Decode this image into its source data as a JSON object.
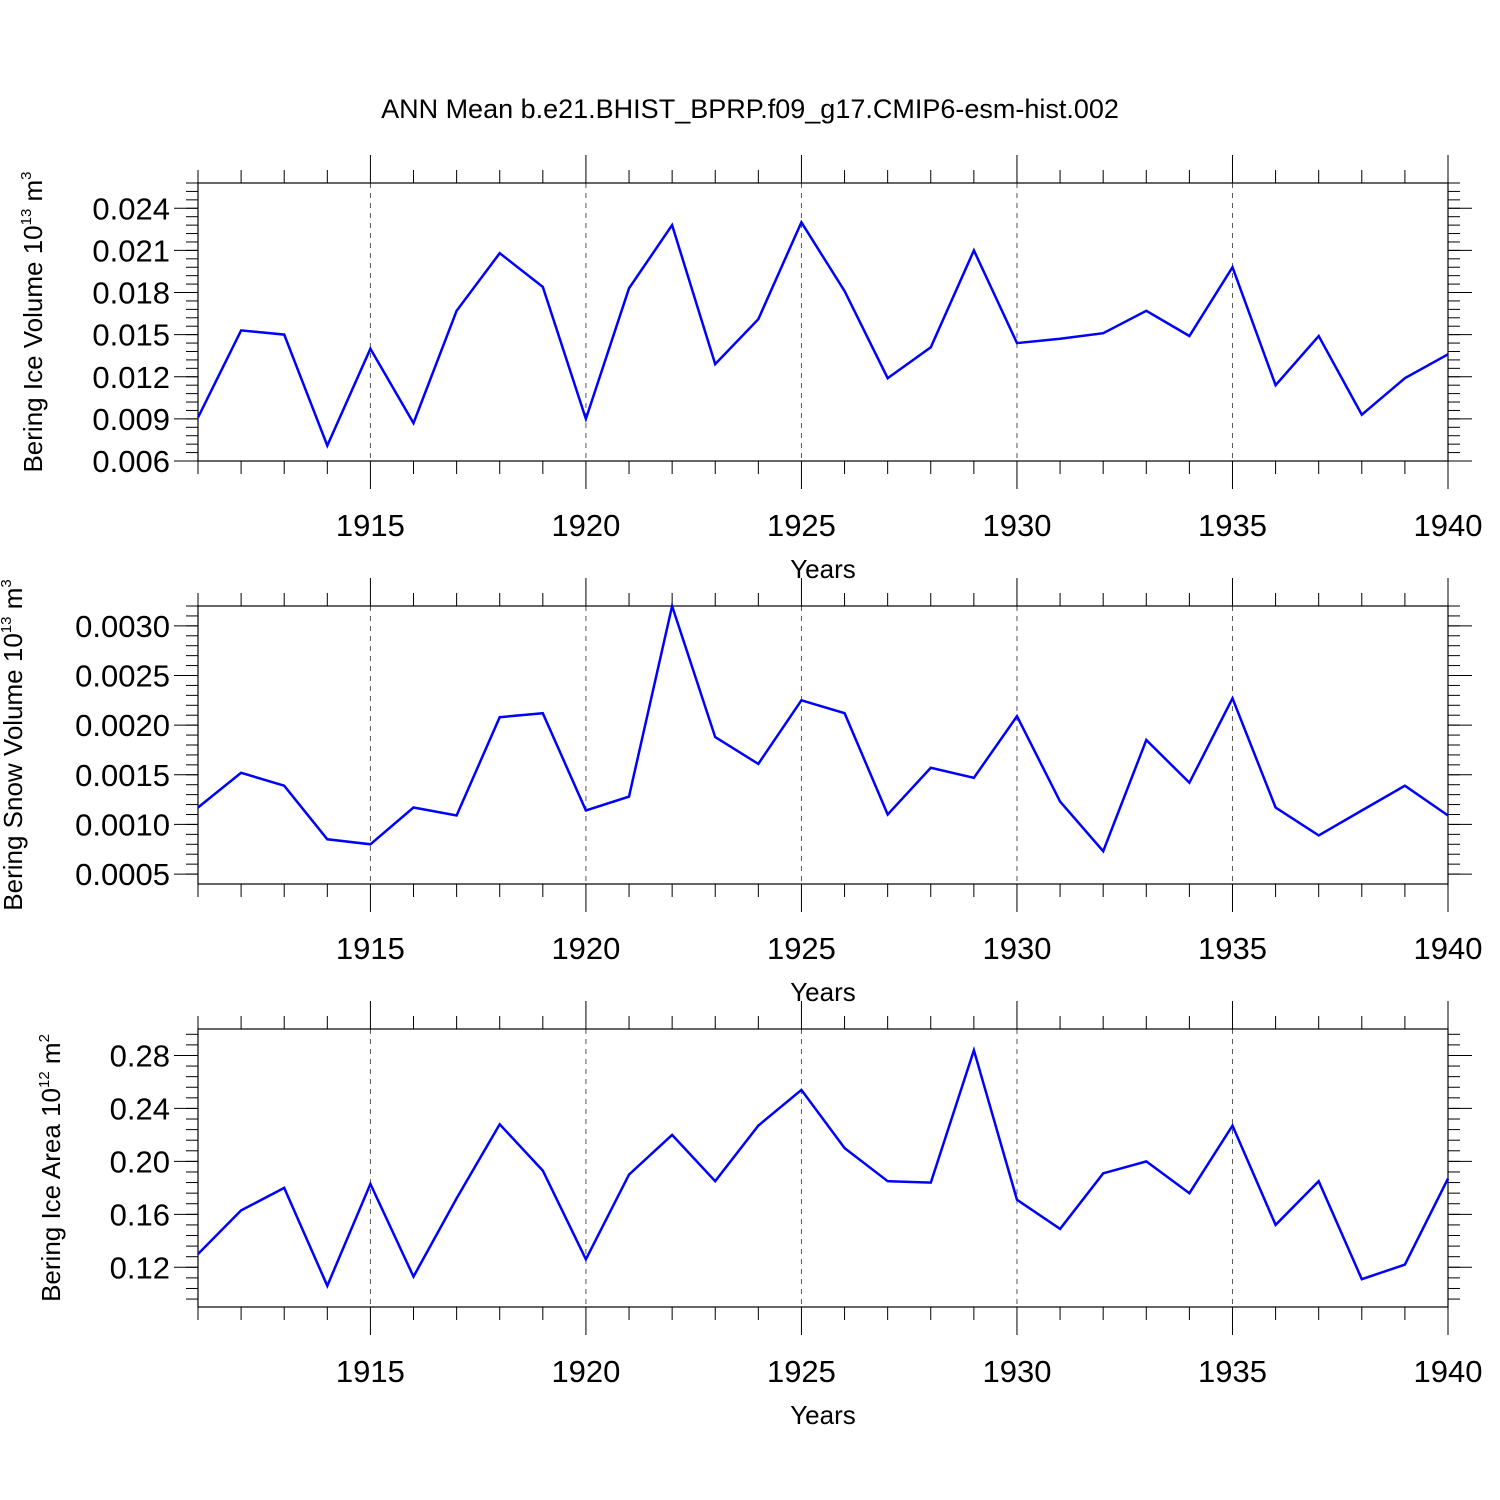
{
  "title": "ANN Mean b.e21.BHIST_BPRP.f09_g17.CMIP6-esm-hist.002",
  "colors": {
    "line": "#0000ff",
    "axis": "#000000",
    "grid": "#555555"
  },
  "chart_data": [
    {
      "type": "line",
      "ylabel": {
        "text": "Bering Ice Volume 10",
        "sup": "13",
        "unit": " m",
        "unit_sup": "3"
      },
      "xlabel": "Years",
      "xlim": [
        1911,
        1940
      ],
      "ylim": [
        0.006,
        0.0258
      ],
      "yticks": [
        0.006,
        0.009,
        0.012,
        0.015,
        0.018,
        0.021,
        0.024
      ],
      "ytick_labels": [
        "0.006",
        "0.009",
        "0.012",
        "0.015",
        "0.018",
        "0.021",
        "0.024"
      ],
      "xticks": [
        1915,
        1920,
        1925,
        1930,
        1935,
        1940
      ],
      "xtick_labels": [
        "1915",
        "1920",
        "1925",
        "1930",
        "1935",
        "1940"
      ],
      "grid_x": "dashed at major ticks",
      "x": [
        1911,
        1912,
        1913,
        1914,
        1915,
        1916,
        1917,
        1918,
        1919,
        1920,
        1921,
        1922,
        1923,
        1924,
        1925,
        1926,
        1927,
        1928,
        1929,
        1930,
        1931,
        1932,
        1933,
        1934,
        1935,
        1936,
        1937,
        1938,
        1939,
        1940
      ],
      "values": [
        0.0091,
        0.0153,
        0.015,
        0.0071,
        0.014,
        0.0087,
        0.0167,
        0.0208,
        0.0184,
        0.009,
        0.0183,
        0.0228,
        0.0129,
        0.0161,
        0.023,
        0.0181,
        0.0119,
        0.0141,
        0.021,
        0.0144,
        0.0147,
        0.0151,
        0.0167,
        0.0149,
        0.0198,
        0.0114,
        0.0149,
        0.0093,
        0.0119,
        0.0136
      ]
    },
    {
      "type": "line",
      "ylabel": {
        "text": "Bering Snow Volume 10",
        "sup": "13",
        "unit": " m",
        "unit_sup": "3"
      },
      "xlabel": "Years",
      "xlim": [
        1911,
        1940
      ],
      "ylim": [
        0.0004,
        0.0032
      ],
      "yticks": [
        0.0005,
        0.001,
        0.0015,
        0.002,
        0.0025,
        0.003
      ],
      "ytick_labels": [
        "0.0005",
        "0.0010",
        "0.0015",
        "0.0020",
        "0.0025",
        "0.0030"
      ],
      "xticks": [
        1915,
        1920,
        1925,
        1930,
        1935,
        1940
      ],
      "xtick_labels": [
        "1915",
        "1920",
        "1925",
        "1930",
        "1935",
        "1940"
      ],
      "grid_x": "dashed at major ticks",
      "x": [
        1911,
        1912,
        1913,
        1914,
        1915,
        1916,
        1917,
        1918,
        1919,
        1920,
        1921,
        1922,
        1923,
        1924,
        1925,
        1926,
        1927,
        1928,
        1929,
        1930,
        1931,
        1932,
        1933,
        1934,
        1935,
        1936,
        1937,
        1938,
        1939,
        1940
      ],
      "values": [
        0.00117,
        0.00152,
        0.00139,
        0.00085,
        0.0008,
        0.00117,
        0.00109,
        0.00208,
        0.00212,
        0.00114,
        0.00128,
        0.0032,
        0.00188,
        0.00161,
        0.00225,
        0.00212,
        0.0011,
        0.00157,
        0.00147,
        0.00209,
        0.00123,
        0.00073,
        0.00185,
        0.00142,
        0.00227,
        0.00117,
        0.00089,
        0.00114,
        0.00139,
        0.00109
      ]
    },
    {
      "type": "line",
      "ylabel": {
        "text": "Bering Ice Area 10",
        "sup": "12",
        "unit": " m",
        "unit_sup": "2"
      },
      "xlabel": "Years",
      "xlim": [
        1911,
        1940
      ],
      "ylim": [
        0.09,
        0.3
      ],
      "yticks": [
        0.12,
        0.16,
        0.2,
        0.24,
        0.28
      ],
      "ytick_labels": [
        "0.12",
        "0.16",
        "0.20",
        "0.24",
        "0.28"
      ],
      "xticks": [
        1915,
        1920,
        1925,
        1930,
        1935,
        1940
      ],
      "xtick_labels": [
        "1915",
        "1920",
        "1925",
        "1930",
        "1935",
        "1940"
      ],
      "grid_x": "dashed at major ticks",
      "x": [
        1911,
        1912,
        1913,
        1914,
        1915,
        1916,
        1917,
        1918,
        1919,
        1920,
        1921,
        1922,
        1923,
        1924,
        1925,
        1926,
        1927,
        1928,
        1929,
        1930,
        1931,
        1932,
        1933,
        1934,
        1935,
        1936,
        1937,
        1938,
        1939,
        1940
      ],
      "values": [
        0.13,
        0.163,
        0.18,
        0.106,
        0.183,
        0.113,
        0.172,
        0.228,
        0.193,
        0.126,
        0.19,
        0.22,
        0.185,
        0.227,
        0.254,
        0.21,
        0.185,
        0.184,
        0.284,
        0.171,
        0.149,
        0.191,
        0.2,
        0.176,
        0.227,
        0.152,
        0.185,
        0.111,
        0.122,
        0.187
      ]
    }
  ]
}
